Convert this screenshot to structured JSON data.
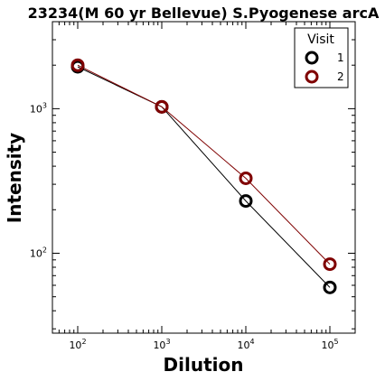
{
  "chart_data": {
    "type": "line",
    "title": "23234(M 60 yr Bellevue) S.Pyogenese arcA",
    "xlabel": "Dilution",
    "ylabel": "Intensity",
    "xscale": "log",
    "yscale": "log",
    "xlim": [
      50,
      200000
    ],
    "ylim": [
      28,
      4000
    ],
    "x_ticks": [
      {
        "value": 100,
        "base": "10",
        "exp": "2"
      },
      {
        "value": 1000,
        "base": "10",
        "exp": "3"
      },
      {
        "value": 10000,
        "base": "10",
        "exp": "4"
      },
      {
        "value": 100000,
        "base": "10",
        "exp": "5"
      }
    ],
    "y_ticks": [
      {
        "value": 100,
        "base": "10",
        "exp": "2"
      },
      {
        "value": 1000,
        "base": "10",
        "exp": "3"
      }
    ],
    "x": [
      100,
      1000,
      10000,
      100000
    ],
    "series": [
      {
        "name": "1",
        "color": "#000000",
        "values": [
          1950,
          1030,
          230,
          58
        ]
      },
      {
        "name": "2",
        "color": "#7f0000",
        "values": [
          2000,
          1030,
          330,
          84
        ]
      }
    ],
    "legend": {
      "title": "Visit",
      "position": "top-right"
    },
    "grid": false
  }
}
